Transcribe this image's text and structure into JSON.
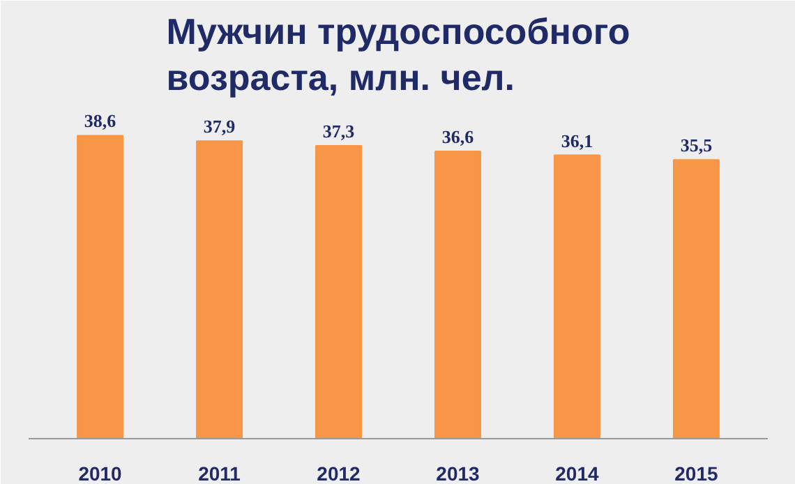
{
  "chart_data": {
    "type": "bar",
    "title": "Мужчин трудоспособного возраста, млн. чел.",
    "categories": [
      "2010",
      "2011",
      "2012",
      "2013",
      "2014",
      "2015"
    ],
    "values": [
      38.6,
      37.9,
      37.3,
      36.6,
      36.1,
      35.5
    ],
    "value_labels": [
      "38,6",
      "37,9",
      "37,3",
      "36,6",
      "36,1",
      "35,5"
    ],
    "color": "#f79646"
  }
}
